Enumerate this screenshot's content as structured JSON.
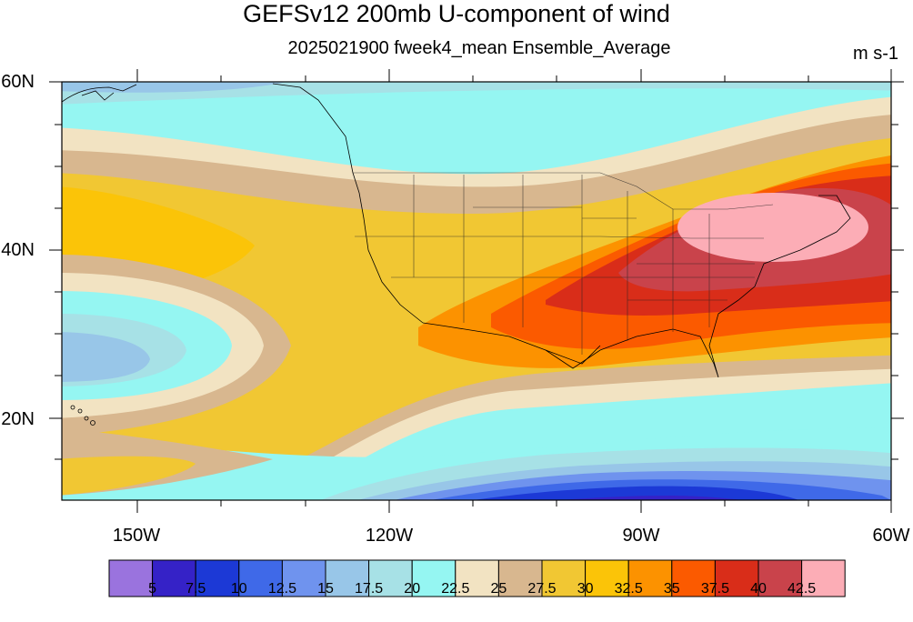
{
  "title": "GEFSv12 200mb U-component of wind",
  "subtitle": "2025021900 fweek4_mean Ensemble_Average",
  "units": "m s-1",
  "y_labels": [
    "60N",
    "40N",
    "20N"
  ],
  "x_labels": [
    "150W",
    "120W",
    "90W",
    "60W"
  ],
  "colorbar": {
    "colors": [
      "#9a73de",
      "#3522c7",
      "#1c39d6",
      "#3f69e8",
      "#6f93ee",
      "#98c6e8",
      "#a7e1e6",
      "#95f6f2",
      "#f2e3c2",
      "#d8b78f",
      "#f1c733",
      "#fbc408",
      "#fc9200",
      "#fb5a00",
      "#d92d19",
      "#c9434b",
      "#fcadb6"
    ],
    "labels": [
      "5",
      "7.5",
      "10",
      "12.5",
      "15",
      "17.5",
      "20",
      "22.5",
      "25",
      "27.5",
      "30",
      "32.5",
      "35",
      "37.5",
      "40",
      "42.5"
    ]
  }
}
